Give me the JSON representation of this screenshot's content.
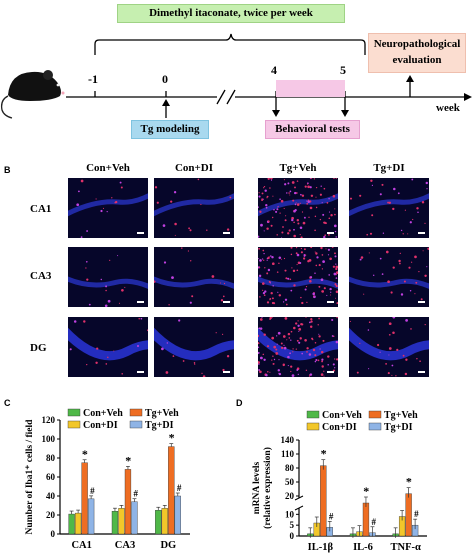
{
  "panel_a": {
    "treatment_box": "Dimethyl itaconate, twice per week",
    "timepoints": [
      "-1",
      "0",
      "4",
      "5"
    ],
    "axis_label": "week",
    "tg_modeling": "Tg modeling",
    "behavioral_tests": "Behavioral tests",
    "neuropath_line1": "Neuropathological",
    "neuropath_line2": "evaluation",
    "colors": {
      "green": "#c6efb0",
      "blue": "#a9d9ef",
      "pink": "#f6c8e6",
      "peach": "#fbddd0"
    }
  },
  "panel_b": {
    "letter": "B",
    "columns": [
      "Con+Veh",
      "Con+DI",
      "Tg+Veh",
      "Tg+DI"
    ],
    "rows": [
      "CA1",
      "CA3",
      "DG"
    ]
  },
  "panel_c": {
    "letter": "C",
    "legend": [
      "Con+Veh",
      "Tg+Veh",
      "Con+DI",
      "Tg+DI"
    ]
  },
  "panel_d": {
    "letter": "D",
    "legend": [
      "Con+Veh",
      "Tg+Veh",
      "Con+DI",
      "Tg+DI"
    ]
  },
  "chart_data": [
    {
      "type": "bar",
      "ylabel": "Number of Iba1⁺ cells / field",
      "categories": [
        "CA1",
        "CA3",
        "DG"
      ],
      "ylim": [
        0,
        120
      ],
      "yticks": [
        0,
        20,
        40,
        60,
        80,
        100,
        120
      ],
      "series": [
        {
          "name": "Con+Veh",
          "color": "#4fb848",
          "values": [
            21,
            24,
            25
          ]
        },
        {
          "name": "Con+DI",
          "color": "#f2c72a",
          "values": [
            22,
            27,
            27
          ]
        },
        {
          "name": "Tg+Veh",
          "color": "#ee6d22",
          "values": [
            75,
            68,
            92
          ]
        },
        {
          "name": "Tg+DI",
          "color": "#8fb4e6",
          "values": [
            37,
            34,
            40
          ]
        }
      ],
      "annotations": {
        "star_series": "Tg+Veh",
        "hash_series": "Tg+DI",
        "star": "*",
        "hash": "#"
      }
    },
    {
      "type": "bar",
      "ylabel": "mRNA levels",
      "ylabel2": "(relative expression)",
      "categories": [
        "IL-1β",
        "IL-6",
        "TNF-α"
      ],
      "broken_axis": true,
      "upper_ticks": [
        20,
        50,
        80,
        110,
        140
      ],
      "lower_ticks": [
        0,
        5,
        10
      ],
      "series": [
        {
          "name": "Con+Veh",
          "color": "#4fb848",
          "values": [
            1,
            1,
            1
          ]
        },
        {
          "name": "Con+DI",
          "color": "#f2c72a",
          "values": [
            6,
            2,
            9
          ]
        },
        {
          "name": "Tg+Veh",
          "color": "#ee6d22",
          "values": [
            85,
            15,
            25
          ]
        },
        {
          "name": "Tg+DI",
          "color": "#8fb4e6",
          "values": [
            4,
            1.5,
            5
          ]
        }
      ],
      "annotations": {
        "star": "*",
        "hash": "#"
      }
    }
  ]
}
